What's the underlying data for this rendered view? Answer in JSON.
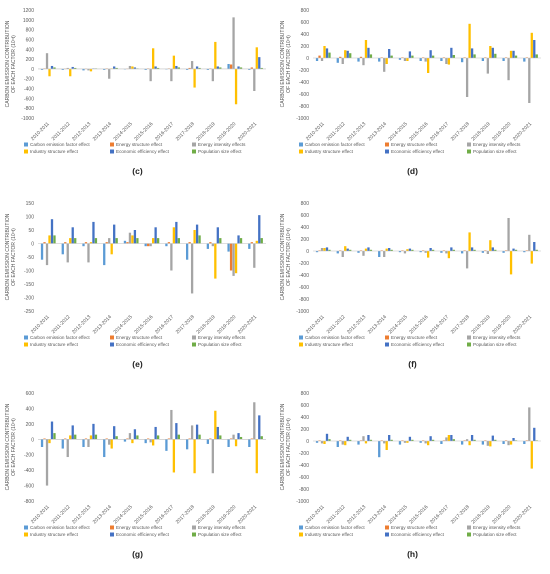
{
  "colors": {
    "Carbon emission factor effect": "#5b9bd5",
    "Energy structure effect": "#ed7d31",
    "Energy intensity effects": "#a5a5a5",
    "Industry structure effect": "#ffc000",
    "Economic efficiency effect": "#4472c4",
    "Population size effect": "#70ad47"
  },
  "chart_data": [
    {
      "type": "bar",
      "panel_label": "(c)",
      "ylabel": "CARBON EMISSION CONTRIBUTION OF EACH FACTOR (10⁴t)",
      "ylim": [
        -1000,
        1200
      ],
      "yticks": [
        -1000,
        -800,
        -600,
        -400,
        -200,
        0,
        200,
        400,
        600,
        800,
        1000,
        1200
      ],
      "categories": [
        "2010-2011",
        "2011-2012",
        "2012-2013",
        "2013-2014",
        "2014-2015",
        "2015-2016",
        "2016-2017",
        "2017-2018",
        "2018-2019",
        "2019-2020",
        "2020-2021"
      ],
      "series": [
        {
          "name": "Carbon emission factor effect",
          "values": [
            -20,
            -20,
            -30,
            -20,
            -10,
            -20,
            -10,
            -20,
            -20,
            100,
            -20
          ]
        },
        {
          "name": "Energy structure effect",
          "values": [
            10,
            5,
            5,
            10,
            5,
            10,
            10,
            20,
            10,
            90,
            30
          ]
        },
        {
          "name": "Energy intensity effects",
          "values": [
            320,
            20,
            -30,
            -200,
            60,
            -250,
            -250,
            160,
            -250,
            1050,
            -450
          ]
        },
        {
          "name": "Industry structure effect",
          "values": [
            -150,
            -150,
            -50,
            10,
            50,
            420,
            270,
            -380,
            550,
            -720,
            440
          ]
        },
        {
          "name": "Economic efficiency effect",
          "values": [
            60,
            40,
            10,
            50,
            30,
            50,
            60,
            50,
            50,
            50,
            240
          ]
        },
        {
          "name": "Population size effect",
          "values": [
            30,
            20,
            10,
            20,
            10,
            20,
            30,
            20,
            30,
            30,
            20
          ]
        }
      ]
    },
    {
      "type": "bar",
      "panel_label": "(d)",
      "ylabel": "CARBON EMISSION CONTRIBUTION OF EACH FACTOR (10⁴t)",
      "ylim": [
        -1000,
        800
      ],
      "yticks": [
        -1000,
        -800,
        -600,
        -400,
        -200,
        0,
        200,
        400,
        600,
        800
      ],
      "categories": [
        "2010-2011",
        "2011-2012",
        "2012-2013",
        "2013-2014",
        "2014-2015",
        "2015-2016",
        "2016-2017",
        "2017-2018",
        "2018-2019",
        "2019-2020",
        "2020-2021"
      ],
      "series": [
        {
          "name": "Carbon emission factor effect",
          "values": [
            -50,
            -80,
            -60,
            -60,
            -30,
            -50,
            -50,
            -70,
            -50,
            -50,
            -60
          ]
        },
        {
          "name": "Energy structure effect",
          "values": [
            40,
            20,
            20,
            10,
            10,
            10,
            10,
            10,
            10,
            10,
            10
          ]
        },
        {
          "name": "Energy intensity effects",
          "values": [
            -50,
            -100,
            -120,
            -230,
            -50,
            -60,
            -100,
            -650,
            -260,
            -370,
            -750
          ]
        },
        {
          "name": "Industry structure effect",
          "values": [
            200,
            130,
            300,
            -100,
            -50,
            -250,
            -110,
            570,
            200,
            120,
            420
          ]
        },
        {
          "name": "Economic efficiency effect",
          "values": [
            160,
            120,
            170,
            150,
            110,
            130,
            170,
            160,
            170,
            120,
            300
          ]
        },
        {
          "name": "Population size effect",
          "values": [
            90,
            80,
            60,
            40,
            40,
            40,
            50,
            60,
            70,
            40,
            60
          ]
        }
      ]
    },
    {
      "type": "bar",
      "panel_label": "(e)",
      "ylabel": "CARBON EMISSION CONTRIBUTION OF EACH FACTOR (10⁴t)",
      "ylim": [
        -250,
        150
      ],
      "yticks": [
        -250,
        -200,
        -150,
        -100,
        -50,
        0,
        50,
        100,
        150
      ],
      "categories": [
        "2010-2011",
        "2011-2012",
        "2012-2013",
        "2013-2014",
        "2014-2015",
        "2015-2016",
        "2016-2017",
        "2017-2018",
        "2018-2019",
        "2019-2020",
        "2020-2021"
      ],
      "series": [
        {
          "name": "Carbon emission factor effect",
          "values": [
            -60,
            -40,
            -10,
            -80,
            10,
            -10,
            -10,
            -60,
            -20,
            -30,
            -20
          ]
        },
        {
          "name": "Energy structure effect",
          "values": [
            5,
            5,
            5,
            5,
            5,
            -10,
            5,
            5,
            5,
            -100,
            5
          ]
        },
        {
          "name": "Energy intensity effects",
          "values": [
            -80,
            -70,
            -70,
            20,
            40,
            -10,
            -100,
            -185,
            -10,
            -120,
            -90
          ]
        },
        {
          "name": "Industry structure effect",
          "values": [
            30,
            20,
            5,
            -40,
            30,
            20,
            60,
            50,
            -130,
            -110,
            10
          ]
        },
        {
          "name": "Economic efficiency effect",
          "values": [
            90,
            60,
            80,
            70,
            50,
            60,
            80,
            70,
            60,
            30,
            105
          ]
        },
        {
          "name": "Population size effect",
          "values": [
            30,
            20,
            20,
            20,
            20,
            20,
            20,
            30,
            20,
            20,
            20
          ]
        }
      ]
    },
    {
      "type": "bar",
      "panel_label": "(f)",
      "ylabel": "CARBON EMISSION CONTRIBUTION OF EACH FACTOR (10⁴t)",
      "ylim": [
        -1000,
        800
      ],
      "yticks": [
        -1000,
        -800,
        -600,
        -400,
        -200,
        0,
        200,
        400,
        600,
        800
      ],
      "categories": [
        "2010-2011",
        "2011-2012",
        "2012-2013",
        "2013-2014",
        "2014-2015",
        "2015-2016",
        "2016-2017",
        "2017-2018",
        "2018-2019",
        "2019-2020",
        "2020-2021"
      ],
      "series": [
        {
          "name": "Carbon emission factor effect",
          "values": [
            -20,
            -40,
            -30,
            -100,
            -20,
            -20,
            -30,
            -40,
            -30,
            -30,
            -20
          ]
        },
        {
          "name": "Energy structure effect",
          "values": [
            10,
            10,
            10,
            10,
            10,
            10,
            10,
            10,
            10,
            10,
            10
          ]
        },
        {
          "name": "Energy intensity effects",
          "values": [
            50,
            -100,
            -80,
            -100,
            -40,
            -30,
            -40,
            -290,
            -50,
            550,
            270
          ]
        },
        {
          "name": "Industry structure effect",
          "values": [
            50,
            80,
            40,
            40,
            30,
            -110,
            -120,
            310,
            180,
            -390,
            -210
          ]
        },
        {
          "name": "Economic efficiency effect",
          "values": [
            60,
            40,
            60,
            50,
            40,
            50,
            60,
            60,
            60,
            40,
            150
          ]
        },
        {
          "name": "Population size effect",
          "values": [
            20,
            20,
            20,
            20,
            20,
            20,
            20,
            20,
            20,
            20,
            20
          ]
        }
      ]
    },
    {
      "type": "bar",
      "panel_label": "(g)",
      "ylabel": "CARBON EMISSION CONTRIBUTION OF EACH FACTOR (10⁴t)",
      "ylim": [
        -800,
        600
      ],
      "yticks": [
        -800,
        -600,
        -400,
        -200,
        0,
        200,
        400,
        600
      ],
      "categories": [
        "2010-2011",
        "2011-2012",
        "2012-2013",
        "2013-2014",
        "2014-2015",
        "2015-2016",
        "2016-2017",
        "2017-2018",
        "2018-2019",
        "2019-2020",
        "2020-2021"
      ],
      "series": [
        {
          "name": "Carbon emission factor effect",
          "values": [
            -100,
            -120,
            -100,
            -230,
            -30,
            -50,
            -150,
            -130,
            -60,
            -100,
            -100
          ]
        },
        {
          "name": "Energy structure effect",
          "values": [
            10,
            10,
            10,
            10,
            10,
            10,
            10,
            10,
            10,
            10,
            10
          ]
        },
        {
          "name": "Energy intensity effects",
          "values": [
            -600,
            -230,
            -100,
            -70,
            80,
            -40,
            380,
            180,
            -440,
            60,
            480
          ]
        },
        {
          "name": "Industry structure effect",
          "values": [
            -50,
            50,
            50,
            -120,
            -50,
            -80,
            -430,
            -440,
            370,
            -90,
            -440
          ]
        },
        {
          "name": "Economic efficiency effect",
          "values": [
            230,
            180,
            200,
            170,
            130,
            160,
            210,
            190,
            160,
            80,
            310
          ]
        },
        {
          "name": "Population size effect",
          "values": [
            80,
            60,
            60,
            40,
            50,
            50,
            60,
            60,
            50,
            30,
            40
          ]
        }
      ]
    },
    {
      "type": "bar",
      "panel_label": "(h)",
      "ylabel": "CARBON EMISSION CONTRIBUTION OF EACH FACTOR (10⁴t)",
      "ylim": [
        -1000,
        800
      ],
      "yticks": [
        -1000,
        -800,
        -600,
        -400,
        -200,
        0,
        200,
        400,
        600,
        800
      ],
      "categories": [
        "2010-2011",
        "2011-2012",
        "2012-2013",
        "2013-2014",
        "2014-2015",
        "2015-2016",
        "2016-2017",
        "2017-2018",
        "2018-2019",
        "2019-2020",
        "2020-2021"
      ],
      "series": [
        {
          "name": "Carbon emission factor effect",
          "values": [
            -30,
            -100,
            -60,
            -270,
            -60,
            -30,
            -50,
            -60,
            -60,
            -50,
            -50
          ]
        },
        {
          "name": "Energy structure effect",
          "values": [
            10,
            10,
            10,
            10,
            10,
            10,
            10,
            10,
            10,
            10,
            10
          ]
        },
        {
          "name": "Energy intensity effects",
          "values": [
            -40,
            -60,
            80,
            -40,
            -30,
            -40,
            60,
            30,
            -80,
            -70,
            560
          ]
        },
        {
          "name": "Industry structure effect",
          "values": [
            -50,
            -70,
            -40,
            -150,
            -30,
            -70,
            100,
            -70,
            -90,
            -60,
            -460
          ]
        },
        {
          "name": "Economic efficiency effect",
          "values": [
            120,
            70,
            100,
            100,
            70,
            80,
            100,
            100,
            90,
            50,
            220
          ]
        },
        {
          "name": "Population size effect",
          "values": [
            30,
            20,
            20,
            20,
            20,
            20,
            30,
            20,
            20,
            10,
            10
          ]
        }
      ]
    }
  ]
}
